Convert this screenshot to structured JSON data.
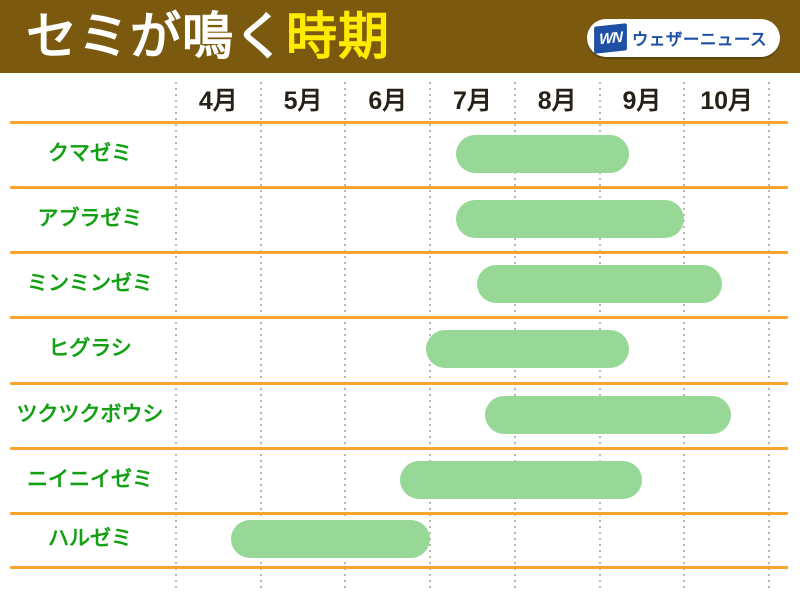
{
  "header": {
    "title_white": "セミが鳴く",
    "title_yellow": "時期",
    "bg_color": "#7B5A10",
    "accent_yellow": "#FFEB00"
  },
  "logo": {
    "mark": "WN",
    "text": "ウェザーニュース",
    "blue": "#1E50A5"
  },
  "chart_data": {
    "type": "bar",
    "subtype": "horizontal timeline (Gantt-style, singing period per species)",
    "title": "セミが鳴く時期",
    "x_unit": "month",
    "x_range": [
      4,
      11
    ],
    "months": [
      "4月",
      "5月",
      "6月",
      "7月",
      "8月",
      "9月",
      "10月"
    ],
    "grid": "dotted vertical line at each month boundary",
    "legend_position": "none",
    "series": [
      {
        "name": "クマゼミ",
        "start": 7.3,
        "end": 9.35
      },
      {
        "name": "アブラゼミ",
        "start": 7.3,
        "end": 10.0
      },
      {
        "name": "ミンミンゼミ",
        "start": 7.55,
        "end": 10.45
      },
      {
        "name": "ヒグラシ",
        "start": 6.95,
        "end": 9.35
      },
      {
        "name": "ツクツクボウシ",
        "start": 7.65,
        "end": 10.55
      },
      {
        "name": "ニイニイゼミ",
        "start": 6.65,
        "end": 9.5
      },
      {
        "name": "ハルゼミ",
        "start": 4.65,
        "end": 7.0
      }
    ],
    "colors": {
      "bar": "#97D897",
      "row_label": "#14A014",
      "month_label": "#272017",
      "row_line": "#FBA42B",
      "grid_dot": "#BDB7B1"
    }
  }
}
